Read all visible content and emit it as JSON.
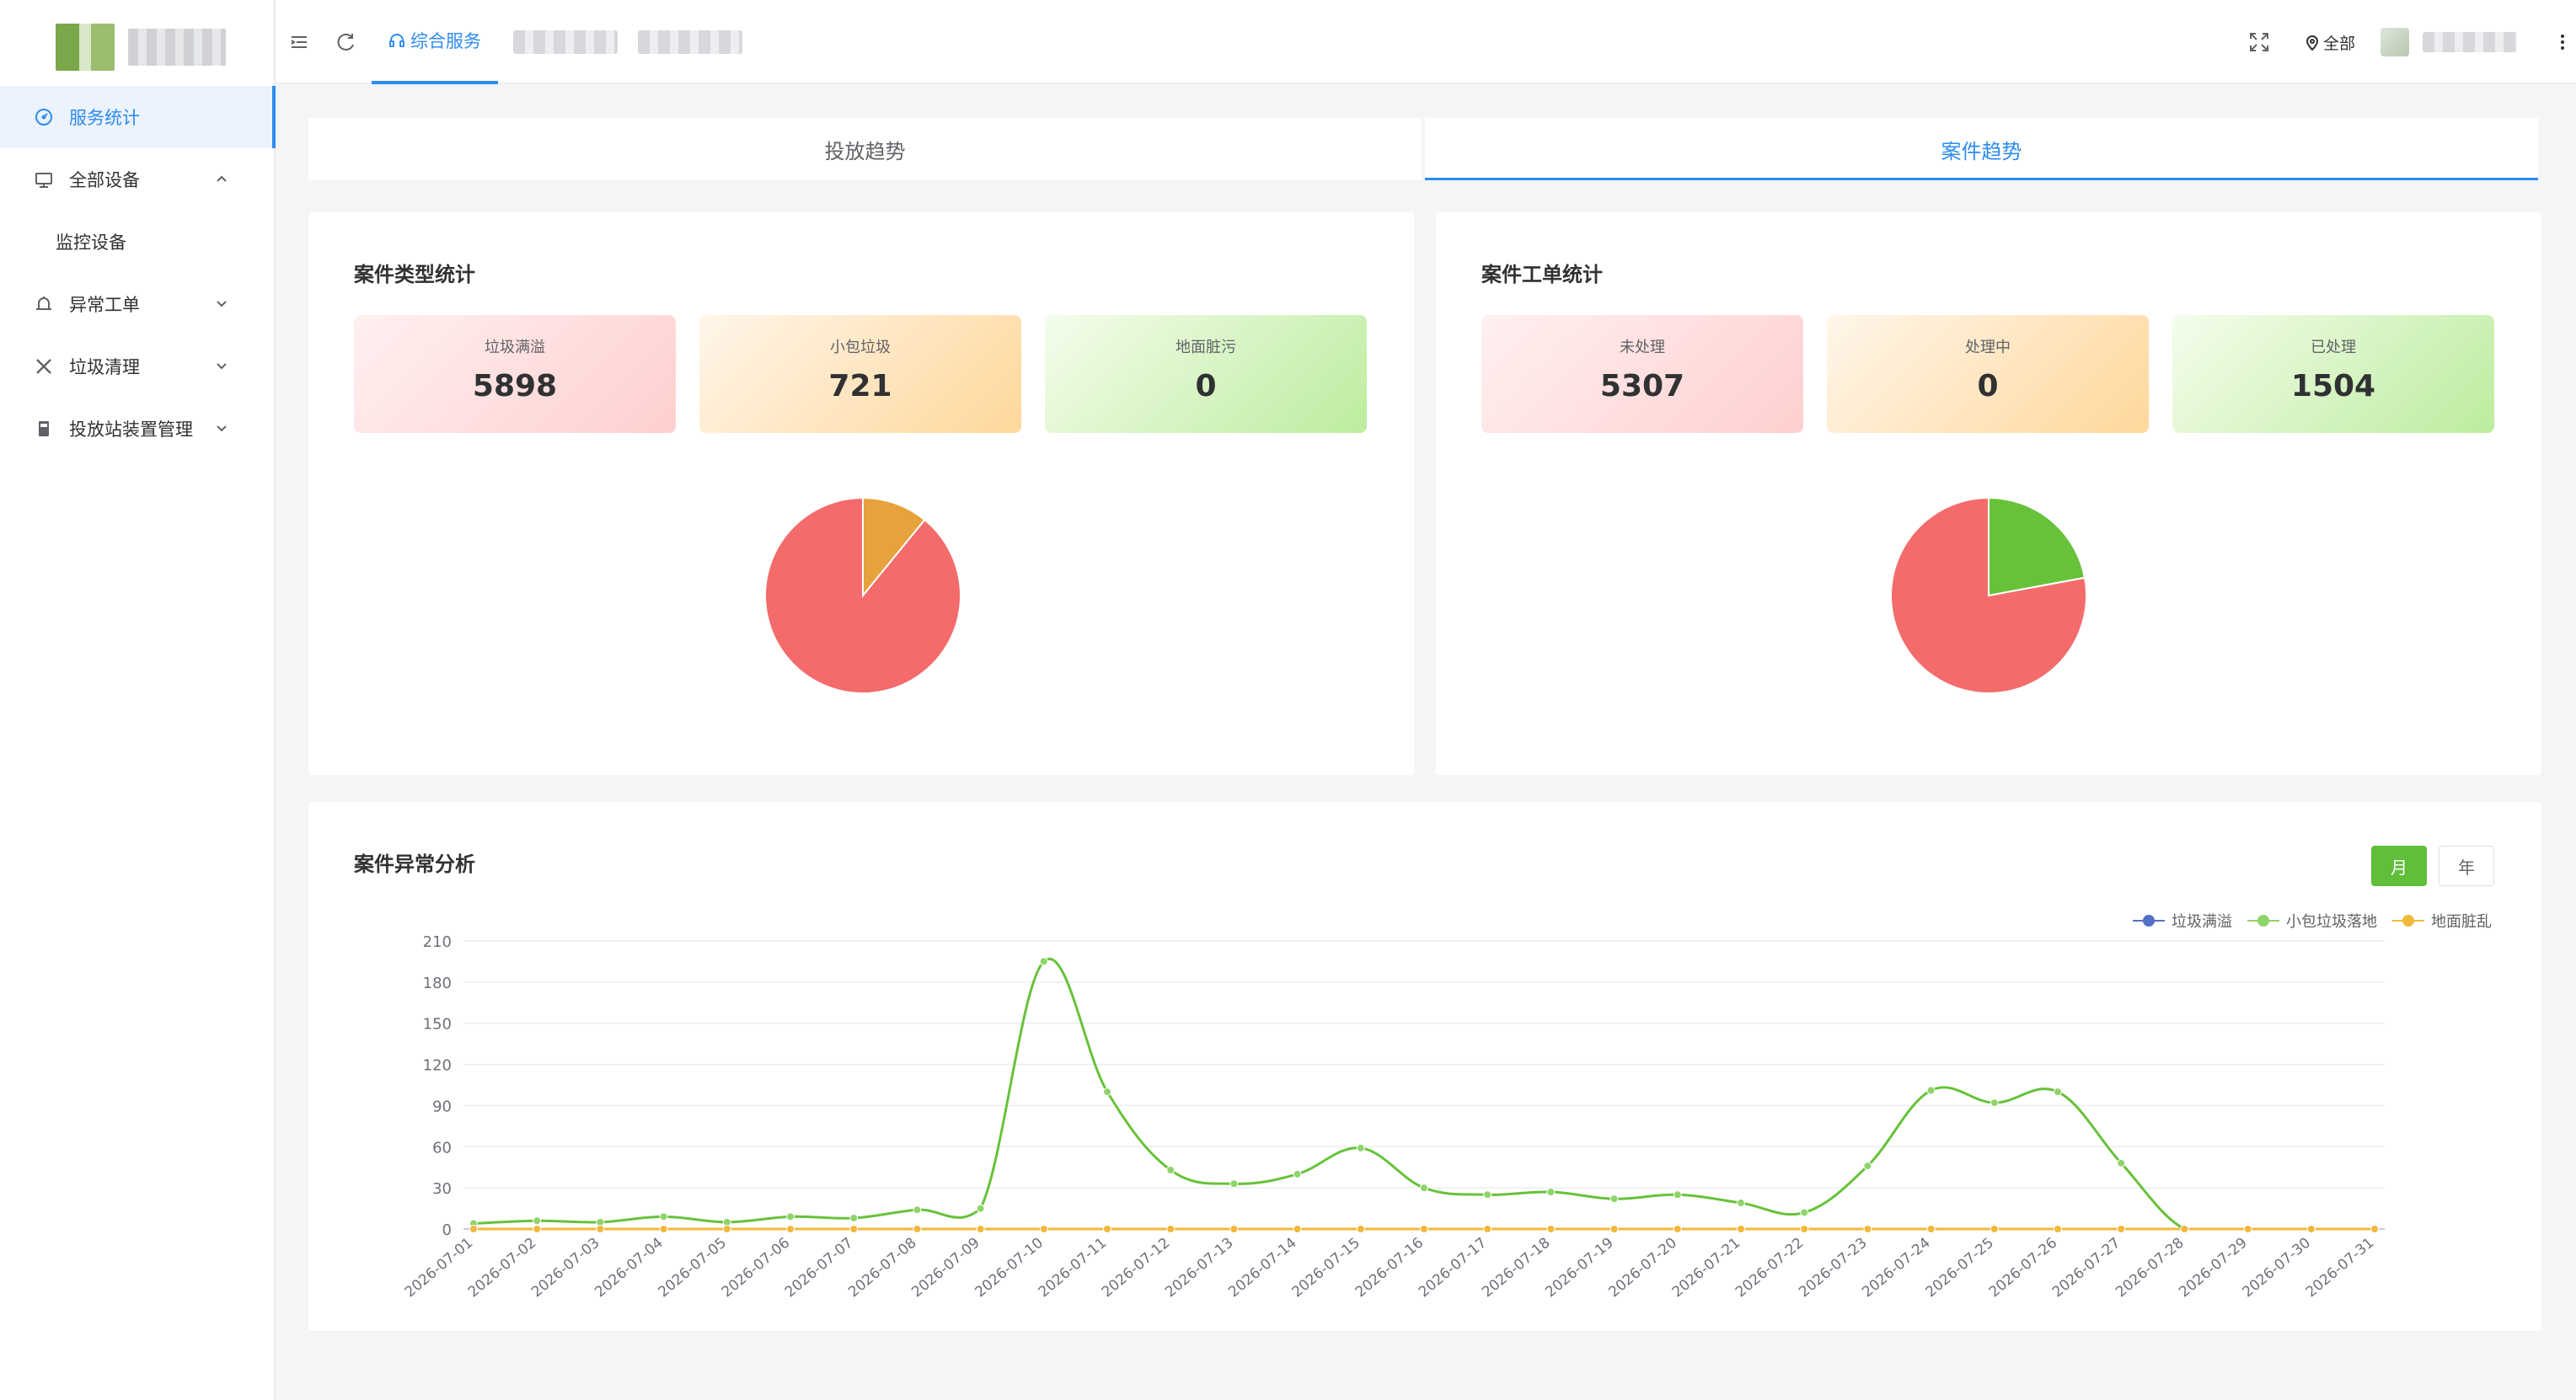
{
  "header": {
    "tabs": [
      {
        "label": "综合服务",
        "active": true
      }
    ],
    "region_label": "全部"
  },
  "sidebar": {
    "items": [
      {
        "label": "服务统计",
        "icon": "dashboard-icon",
        "active": true
      },
      {
        "label": "全部设备",
        "icon": "device-icon",
        "expanded": true
      },
      {
        "label": "监控设备",
        "sub": true
      },
      {
        "label": "异常工单",
        "icon": "alarm-icon"
      },
      {
        "label": "垃圾清理",
        "icon": "tools-icon"
      },
      {
        "label": "投放站装置管理",
        "icon": "station-icon"
      }
    ]
  },
  "trend_tabs": [
    {
      "label": "投放趋势",
      "active": false
    },
    {
      "label": "案件趋势",
      "active": true
    }
  ],
  "case_type": {
    "title": "案件类型统计",
    "cards": [
      {
        "label": "垃圾满溢",
        "value": "5898"
      },
      {
        "label": "小包垃圾",
        "value": "721"
      },
      {
        "label": "地面脏污",
        "value": "0"
      }
    ]
  },
  "case_order": {
    "title": "案件工单统计",
    "cards": [
      {
        "label": "未处理",
        "value": "5307"
      },
      {
        "label": "处理中",
        "value": "0"
      },
      {
        "label": "已处理",
        "value": "1504"
      }
    ]
  },
  "anomaly": {
    "title": "案件异常分析",
    "toggle": {
      "month": "月",
      "year": "年",
      "selected": "月"
    }
  },
  "colors": {
    "accent": "#2d8cf0",
    "pie_red": "#f46b6b",
    "pie_orange": "#e6a23c",
    "pie_green": "#67c23a",
    "series_blue": "#5470c6",
    "series_green": "#67c23a",
    "series_yellow": "#f0b83c"
  },
  "chart_data": [
    {
      "type": "pie",
      "labels": [
        "垃圾满溢",
        "小包垃圾",
        "地面脏污"
      ],
      "values": [
        5898,
        721,
        0
      ],
      "colors": [
        "#f46b6b",
        "#e6a23c",
        "#67c23a"
      ]
    },
    {
      "type": "pie",
      "labels": [
        "未处理",
        "处理中",
        "已处理"
      ],
      "values": [
        5307,
        0,
        1504
      ],
      "colors": [
        "#f46b6b",
        "#e6a23c",
        "#67c23a"
      ]
    },
    {
      "type": "line",
      "x": [
        "2026-07-01",
        "2026-07-02",
        "2026-07-03",
        "2026-07-04",
        "2026-07-05",
        "2026-07-06",
        "2026-07-07",
        "2026-07-08",
        "2026-07-09",
        "2026-07-10",
        "2026-07-11",
        "2026-07-12",
        "2026-07-13",
        "2026-07-14",
        "2026-07-15",
        "2026-07-16",
        "2026-07-17",
        "2026-07-18",
        "2026-07-19",
        "2026-07-20",
        "2026-07-21",
        "2026-07-22",
        "2026-07-23",
        "2026-07-24",
        "2026-07-25",
        "2026-07-26",
        "2026-07-27",
        "2026-07-28",
        "2026-07-29",
        "2026-07-30",
        "2026-07-31"
      ],
      "series": [
        {
          "name": "垃圾满溢",
          "color": "#5470c6",
          "values": [
            0,
            0,
            0,
            0,
            0,
            0,
            0,
            0,
            0,
            0,
            0,
            0,
            0,
            0,
            0,
            0,
            0,
            0,
            0,
            0,
            0,
            0,
            0,
            0,
            0,
            0,
            0,
            0,
            0,
            0,
            0
          ]
        },
        {
          "name": "小包垃圾落地",
          "color": "#67c23a",
          "values": [
            4,
            6,
            5,
            9,
            5,
            9,
            8,
            14,
            15,
            195,
            100,
            43,
            33,
            40,
            59,
            30,
            25,
            27,
            22,
            25,
            19,
            12,
            46,
            101,
            92,
            100,
            48,
            0,
            0,
            0,
            0
          ]
        },
        {
          "name": "地面脏乱",
          "color": "#f0b83c",
          "values": [
            0,
            0,
            0,
            0,
            0,
            0,
            0,
            0,
            0,
            0,
            0,
            0,
            0,
            0,
            0,
            0,
            0,
            0,
            0,
            0,
            0,
            0,
            0,
            0,
            0,
            0,
            0,
            0,
            0,
            0,
            0
          ]
        }
      ],
      "ylim": [
        0,
        210
      ],
      "yticks": [
        0,
        30,
        60,
        90,
        120,
        150,
        180,
        210
      ],
      "grid": true,
      "legend": "top-right"
    }
  ]
}
